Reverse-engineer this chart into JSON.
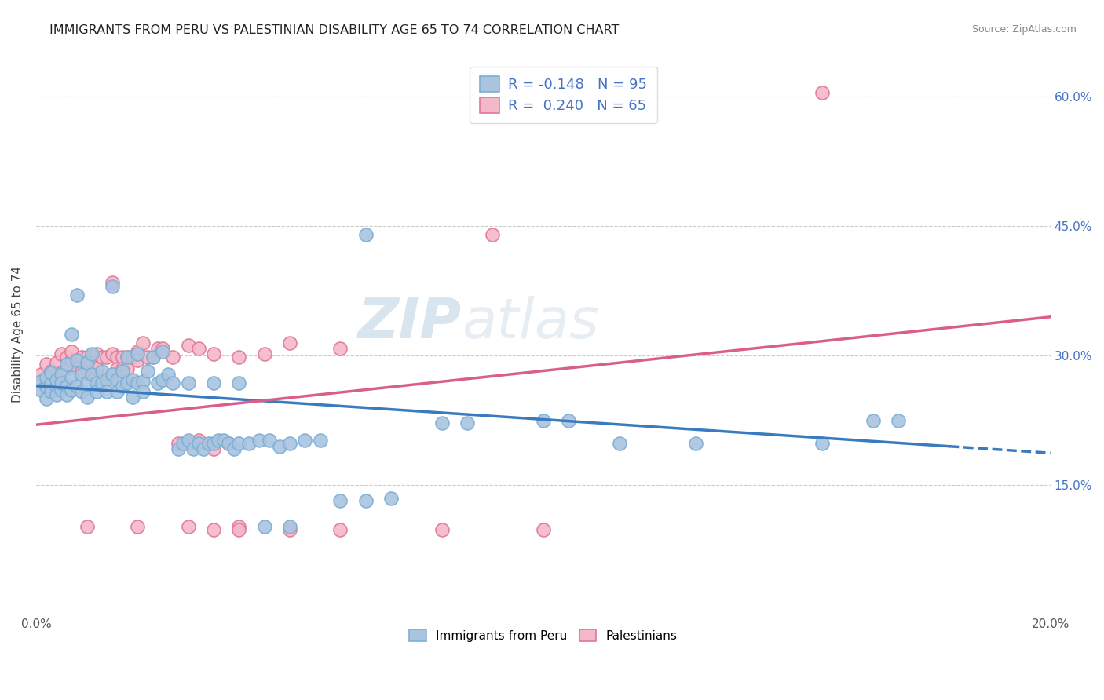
{
  "title": "IMMIGRANTS FROM PERU VS PALESTINIAN DISABILITY AGE 65 TO 74 CORRELATION CHART",
  "source": "Source: ZipAtlas.com",
  "ylabel_label": "Disability Age 65 to 74",
  "xlim": [
    0.0,
    0.2
  ],
  "ylim": [
    0.0,
    0.65
  ],
  "xtick_positions": [
    0.0,
    0.04,
    0.08,
    0.12,
    0.16,
    0.2
  ],
  "xtick_labels": [
    "0.0%",
    "",
    "",
    "",
    "",
    "20.0%"
  ],
  "ytick_positions": [
    0.0,
    0.15,
    0.3,
    0.45,
    0.6
  ],
  "ytick_labels": [
    "",
    "15.0%",
    "30.0%",
    "45.0%",
    "60.0%"
  ],
  "grid_color": "#cccccc",
  "background_color": "#ffffff",
  "peru_color": "#aac4e0",
  "peru_edge_color": "#7bafd4",
  "palestinians_color": "#f4b8c8",
  "palestinians_edge_color": "#e07898",
  "peru_line_color": "#3a7bbf",
  "palestinians_line_color": "#d95f8a",
  "peru_R": -0.148,
  "peru_N": 95,
  "palestinians_R": 0.24,
  "palestinians_N": 65,
  "legend_label_peru": "Immigrants from Peru",
  "legend_label_palestinians": "Palestinians",
  "peru_line_x0": 0.0,
  "peru_line_y0": 0.265,
  "peru_line_x1": 0.18,
  "peru_line_y1": 0.195,
  "palestinians_line_x0": 0.0,
  "palestinians_line_y0": 0.22,
  "palestinians_line_x1": 0.2,
  "palestinians_line_y1": 0.345,
  "watermark": "ZIPatlas",
  "watermark_zip": "ZIP",
  "watermark_atlas": "atlas"
}
